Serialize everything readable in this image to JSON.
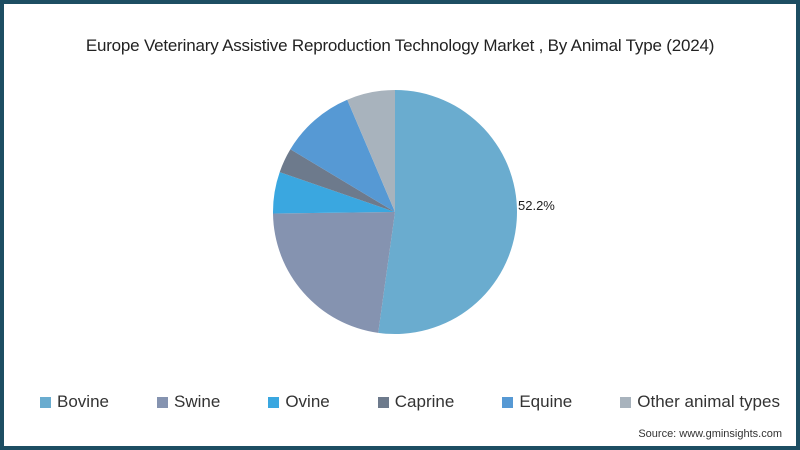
{
  "chart_data": {
    "type": "pie",
    "title": "Europe Veterinary Assistive Reproduction Technology Market , By Animal Type (2024)",
    "categories": [
      "Bovine",
      "Swine",
      "Ovine",
      "Caprine",
      "Equine",
      "Other animal types"
    ],
    "values": [
      52.2,
      22.6,
      5.5,
      3.3,
      10.0,
      6.4
    ],
    "colors": [
      "#6aaccf",
      "#8593b0",
      "#3aa7e0",
      "#6d7a8c",
      "#5699d4",
      "#a8b3bd"
    ],
    "data_labels": [
      "52.2%",
      "",
      "",
      "",
      "",
      ""
    ],
    "legend_position": "bottom",
    "start_angle": "top, clockwise"
  },
  "title": "Europe Veterinary Assistive Reproduction Technology Market , By Animal Type (2024)",
  "legend": [
    {
      "label": "Bovine",
      "color": "#6aaccf"
    },
    {
      "label": "Swine",
      "color": "#8593b0"
    },
    {
      "label": "Ovine",
      "color": "#3aa7e0"
    },
    {
      "label": "Caprine",
      "color": "#6d7a8c"
    },
    {
      "label": "Equine",
      "color": "#5699d4"
    },
    {
      "label": "Other animal types",
      "color": "#a8b3bd"
    }
  ],
  "data_label": "52.2%",
  "source": "Source: www.gminsights.com"
}
